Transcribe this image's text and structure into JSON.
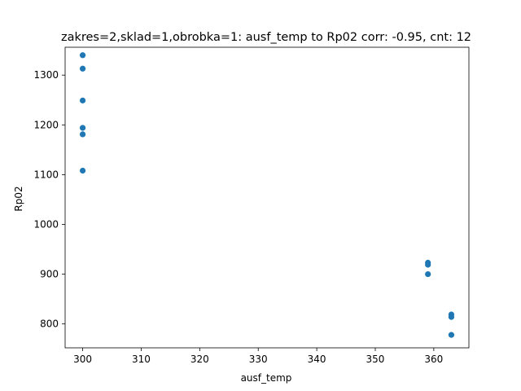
{
  "chart_data": {
    "type": "scatter",
    "title": "zakres=2,sklad=1,obrobka=1: ausf_temp to Rp02 corr: -0.95, cnt: 12",
    "xlabel": "ausf_temp",
    "ylabel": "Rp02",
    "xlim": [
      297,
      366
    ],
    "ylim": [
      752,
      1356
    ],
    "xticks": [
      300,
      310,
      320,
      330,
      340,
      350,
      360
    ],
    "yticks": [
      800,
      900,
      1000,
      1100,
      1200,
      1300
    ],
    "grid": false,
    "color": "#1f77b4",
    "points": [
      {
        "x": 300,
        "y": 1340
      },
      {
        "x": 300,
        "y": 1313
      },
      {
        "x": 300,
        "y": 1249
      },
      {
        "x": 300,
        "y": 1194
      },
      {
        "x": 300,
        "y": 1181
      },
      {
        "x": 300,
        "y": 1108
      },
      {
        "x": 359,
        "y": 923
      },
      {
        "x": 359,
        "y": 919
      },
      {
        "x": 359,
        "y": 900
      },
      {
        "x": 363,
        "y": 819
      },
      {
        "x": 363,
        "y": 814
      },
      {
        "x": 363,
        "y": 778
      }
    ]
  }
}
